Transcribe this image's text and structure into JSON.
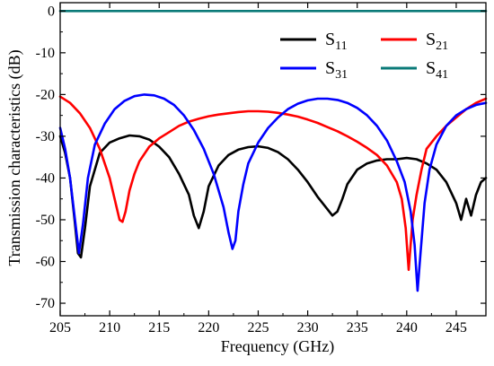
{
  "chart_data": {
    "type": "line",
    "title": "",
    "xlabel": "Frequency (GHz)",
    "ylabel": "Transmission characteristics (dB)",
    "xlim": [
      205,
      248
    ],
    "ylim": [
      -73,
      2
    ],
    "grid": false,
    "legend_position": "top-right",
    "x_ticks": [
      205,
      210,
      215,
      220,
      225,
      230,
      235,
      240,
      245
    ],
    "x_tick_labels": [
      "205",
      "210",
      "215",
      "220",
      "225",
      "230",
      "235",
      "240",
      "245"
    ],
    "y_ticks": [
      0,
      -10,
      -20,
      -30,
      -40,
      -50,
      -60,
      -70
    ],
    "y_tick_labels": [
      "0",
      "-10",
      "-20",
      "-30",
      "-40",
      "-50",
      "-60",
      "-70"
    ],
    "series": [
      {
        "name": "S11",
        "label_main": "S",
        "label_sub": "11",
        "color": "#000000",
        "x": [
          205,
          205.5,
          206,
          206.5,
          206.8,
          207.1,
          207.5,
          208,
          209,
          210,
          211,
          212,
          213,
          214,
          215,
          216,
          217,
          218,
          218.5,
          219,
          219.5,
          220,
          221,
          222,
          223,
          224,
          225,
          226,
          227,
          228,
          229,
          230,
          231,
          232,
          232.5,
          233,
          233.5,
          234,
          235,
          236,
          237,
          238,
          239,
          240,
          241,
          242,
          243,
          244,
          245,
          245.5,
          246,
          246.5,
          247,
          247.5,
          248
        ],
        "y": [
          -30,
          -34,
          -40,
          -51,
          -58,
          -59,
          -52,
          -42,
          -34,
          -31.5,
          -30.5,
          -29.8,
          -30,
          -30.8,
          -32.5,
          -35,
          -39,
          -44,
          -49,
          -52,
          -48,
          -42,
          -37,
          -34.5,
          -33.2,
          -32.6,
          -32.4,
          -32.8,
          -33.8,
          -35.5,
          -38,
          -41,
          -44.5,
          -47.5,
          -49,
          -48,
          -45,
          -41.5,
          -38,
          -36.5,
          -35.8,
          -35.5,
          -35.5,
          -35.2,
          -35.5,
          -36.5,
          -38,
          -41,
          -46,
          -50,
          -45,
          -49,
          -44,
          -41,
          -40
        ]
      },
      {
        "name": "S21",
        "label_main": "S",
        "label_sub": "21",
        "color": "#ff0000",
        "x": [
          205,
          206,
          207,
          208,
          209,
          210,
          210.5,
          211,
          211.3,
          211.6,
          212,
          212.5,
          213,
          214,
          215,
          216,
          217,
          218,
          219,
          220,
          221,
          222,
          223,
          224,
          225,
          226,
          227,
          228,
          229,
          230,
          231,
          232,
          233,
          234,
          235,
          236,
          237,
          238,
          239,
          239.5,
          239.9,
          240.2,
          240.6,
          241,
          241.5,
          242,
          243,
          244,
          245,
          246,
          247,
          248
        ],
        "y": [
          -20.5,
          -22,
          -24.5,
          -28,
          -33,
          -40,
          -45,
          -50,
          -50.5,
          -48,
          -43,
          -39,
          -36,
          -32.5,
          -30.5,
          -29,
          -27.5,
          -26.5,
          -25.8,
          -25.2,
          -24.8,
          -24.5,
          -24.2,
          -24,
          -24,
          -24.1,
          -24.4,
          -24.8,
          -25.3,
          -26,
          -26.8,
          -27.8,
          -28.8,
          -30,
          -31.3,
          -32.8,
          -34.5,
          -37,
          -41,
          -45,
          -52,
          -62,
          -50,
          -44,
          -38,
          -33,
          -30,
          -27.5,
          -25.5,
          -23.5,
          -22,
          -21
        ]
      },
      {
        "name": "S31",
        "label_main": "S",
        "label_sub": "31",
        "color": "#0000ff",
        "x": [
          205,
          205.5,
          206,
          206.3,
          206.6,
          206.9,
          207.3,
          207.8,
          208.5,
          209.5,
          210.5,
          211.5,
          212.5,
          213.5,
          214.5,
          215.5,
          216.5,
          217.5,
          218.5,
          219.5,
          220.5,
          221.5,
          222,
          222.4,
          222.7,
          223,
          223.5,
          224,
          225,
          226,
          227,
          228,
          229,
          230,
          231,
          232,
          233,
          234,
          235,
          236,
          237,
          238,
          239,
          239.8,
          240.4,
          240.8,
          241.1,
          241.4,
          241.8,
          242.3,
          243,
          244,
          245,
          246,
          247,
          248
        ],
        "y": [
          -28,
          -33,
          -40,
          -46,
          -52,
          -58,
          -51,
          -40,
          -32,
          -27,
          -23.5,
          -21.5,
          -20.4,
          -20,
          -20.2,
          -21,
          -22.5,
          -25,
          -28.5,
          -33,
          -39,
          -47,
          -53,
          -57,
          -55,
          -48,
          -41.5,
          -36.5,
          -31.5,
          -28,
          -25.5,
          -23.5,
          -22.2,
          -21.4,
          -21,
          -21,
          -21.3,
          -22,
          -23.2,
          -25,
          -27.5,
          -31,
          -36,
          -41,
          -48,
          -56,
          -67,
          -58,
          -46,
          -38,
          -32,
          -27.5,
          -25,
          -23.5,
          -22.5,
          -22
        ]
      },
      {
        "name": "S41",
        "label_main": "S",
        "label_sub": "41",
        "color": "#0a7a78",
        "x": [
          205,
          248
        ],
        "y": [
          0,
          0
        ]
      }
    ]
  }
}
